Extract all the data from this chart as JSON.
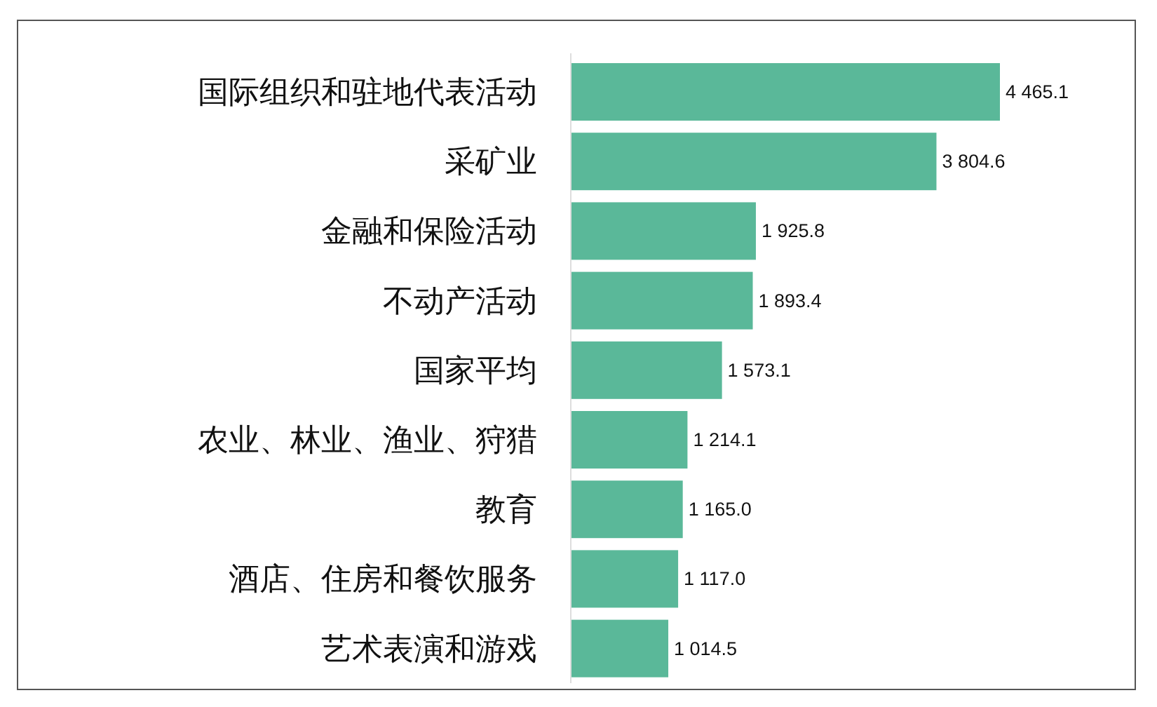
{
  "chart_data": {
    "type": "bar",
    "orientation": "horizontal",
    "categories": [
      "国际组织和驻地代表活动",
      "采矿业",
      "金融和保险活动",
      "不动产活动",
      "国家平均",
      "农业、林业、渔业、狩猎",
      "教育",
      "酒店、住房和餐饮服务",
      "艺术表演和游戏"
    ],
    "values": [
      4465.1,
      3804.6,
      1925.8,
      1893.4,
      1573.1,
      1214.1,
      1165.0,
      1117.0,
      1014.5
    ],
    "value_labels": [
      "4 465.1",
      "3 804.6",
      "1 925.8",
      "1 893.4",
      "1 573.1",
      "1 214.1",
      "1 165.0",
      "1 117.0",
      "1 014.5"
    ],
    "color": "#5ab899"
  }
}
